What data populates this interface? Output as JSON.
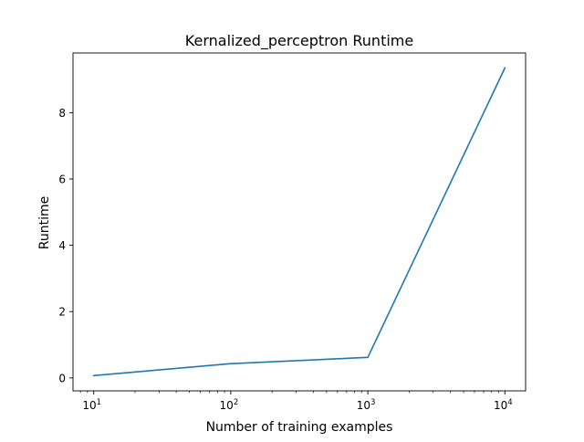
{
  "chart_data": {
    "type": "line",
    "title": "Kernalized_perceptron Runtime",
    "xlabel": "Number of training examples",
    "ylabel": "Runtime",
    "xscale": "log",
    "xlim": [
      7.06,
      14160
    ],
    "ylim": [
      -0.39,
      9.8
    ],
    "grid": false,
    "series": [
      {
        "name": "Runtime",
        "color": "#1f77b4",
        "x": [
          10,
          100,
          1000,
          10000
        ],
        "y": [
          0.07,
          0.43,
          0.62,
          9.35
        ]
      }
    ],
    "x_major_ticks": [
      {
        "value": 10,
        "base": "10",
        "exp": "1"
      },
      {
        "value": 100,
        "base": "10",
        "exp": "2"
      },
      {
        "value": 1000,
        "base": "10",
        "exp": "3"
      },
      {
        "value": 10000,
        "base": "10",
        "exp": "4"
      }
    ],
    "x_minor_ticks": [
      8,
      9,
      20,
      30,
      40,
      50,
      60,
      70,
      80,
      90,
      200,
      300,
      400,
      500,
      600,
      700,
      800,
      900,
      2000,
      3000,
      4000,
      5000,
      6000,
      7000,
      8000,
      9000
    ],
    "y_ticks": [
      {
        "value": 0,
        "label": "0"
      },
      {
        "value": 2,
        "label": "2"
      },
      {
        "value": 4,
        "label": "4"
      },
      {
        "value": 6,
        "label": "6"
      },
      {
        "value": 8,
        "label": "8"
      }
    ]
  }
}
